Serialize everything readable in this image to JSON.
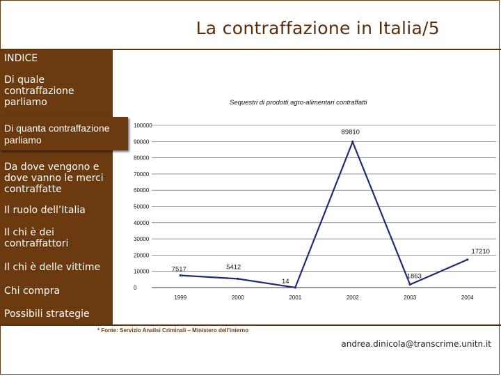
{
  "header": {
    "title": "La contraffazione in Italia/5"
  },
  "sidebar": {
    "items": [
      {
        "label": "INDICE"
      },
      {
        "label": "Di quale contraffazione parliamo"
      },
      {
        "label": "Di quanta contraffazione parliamo"
      },
      {
        "label": "Da dove vengono e dove vanno le merci contraffatte"
      },
      {
        "label": "Il ruolo dell’Italia"
      },
      {
        "label": "Il chi è dei contraffattori"
      },
      {
        "label": "Il chi è delle vittime"
      },
      {
        "label": "Chi compra"
      },
      {
        "label": "Possibili strategie"
      }
    ],
    "active_index": 2,
    "color": "#6b3a0f"
  },
  "footer": {
    "source": "* Fonte: Servizio Analisi Criminali – Ministero dell’interno",
    "email": "andrea.dinicola@transcrime.unitn.it"
  },
  "chart_data": {
    "type": "line",
    "title": "Sequestri di prodotti agro-alimentari contraffatti",
    "xlabel": "",
    "ylabel": "",
    "x": [
      "1999",
      "2000",
      "2001",
      "2002",
      "2003",
      "2004"
    ],
    "values": [
      7517,
      5412,
      14,
      89810,
      1863,
      17210
    ],
    "data_labels": [
      "7517",
      "5412",
      "14",
      "89810",
      "1863",
      "17210"
    ],
    "ylim": [
      0,
      100000
    ],
    "yticks": [
      0,
      10000,
      20000,
      30000,
      40000,
      50000,
      60000,
      70000,
      80000,
      90000,
      100000
    ],
    "ytick_labels": [
      "0",
      "10000",
      "20000",
      "30000",
      "40000",
      "50000",
      "60000",
      "70000",
      "80000",
      "90000",
      "100000"
    ],
    "grid": true,
    "line_color": "#1f2a78"
  }
}
